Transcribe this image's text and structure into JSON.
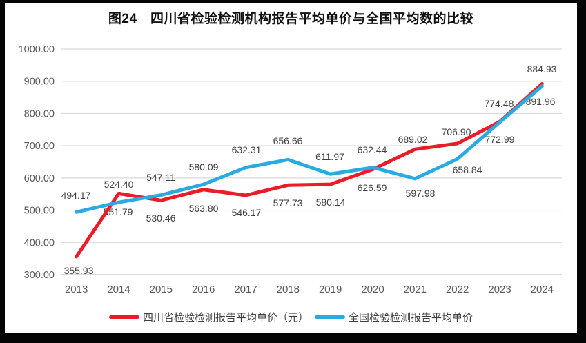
{
  "title": "图24　四川省检验检测机构报告平均单价与全国平均数的比较",
  "colors": {
    "sichuan_red": "#e91c28",
    "national_blue": "#29abe2",
    "grid": "#d9d9d9",
    "axis_line": "#c3c3c3",
    "axis_text": "#595959",
    "label_text": "#404040"
  },
  "legend": {
    "items": [
      {
        "label": "四川省检验检测报告平均单价（元）",
        "color_key": "sichuan_red"
      },
      {
        "label": "全国检验检测报告平均单价",
        "color_key": "national_blue"
      }
    ]
  },
  "chart_data": {
    "type": "line",
    "categories": [
      "2013",
      "2014",
      "2015",
      "2016",
      "2017",
      "2018",
      "2019",
      "2020",
      "2021",
      "2022",
      "2023",
      "2024"
    ],
    "series": [
      {
        "name": "四川省检验检测报告平均单价（元）",
        "color": "#e91c28",
        "values": [
          355.93,
          551.79,
          530.46,
          563.8,
          546.17,
          577.73,
          580.14,
          626.59,
          689.02,
          706.9,
          774.48,
          891.96
        ],
        "labels": [
          "355.93",
          "551.79",
          "530.46",
          "563.80",
          "546.17",
          "577.73",
          "580.14",
          "626.59",
          "689.02",
          "706.90",
          "774.48",
          "891.96"
        ]
      },
      {
        "name": "全国检验检测报告平均单价",
        "color": "#29abe2",
        "values": [
          494.17,
          524.4,
          547.11,
          580.09,
          632.31,
          656.66,
          611.97,
          632.44,
          597.98,
          658.84,
          772.99,
          884.93
        ],
        "labels": [
          "494.17",
          "524.40",
          "547.11",
          "580.09",
          "632.31",
          "656.66",
          "611.97",
          "632.44",
          "597.98",
          "658.84",
          "772.99",
          "884.93"
        ]
      }
    ],
    "title": "图24　四川省检验检测机构报告平均单价与全国平均数的比较",
    "xlabel": "",
    "ylabel": "",
    "ylim": [
      300,
      1000
    ],
    "yticks": {
      "values": [
        1000,
        900,
        800,
        700,
        600,
        500,
        400,
        300
      ],
      "labels": [
        "1000.00",
        "900.00",
        "800.00",
        "700.00",
        "600.00",
        "500.00",
        "400.00",
        "300.00"
      ]
    },
    "grid": true,
    "data_labels": true,
    "legend_position": "bottom"
  }
}
